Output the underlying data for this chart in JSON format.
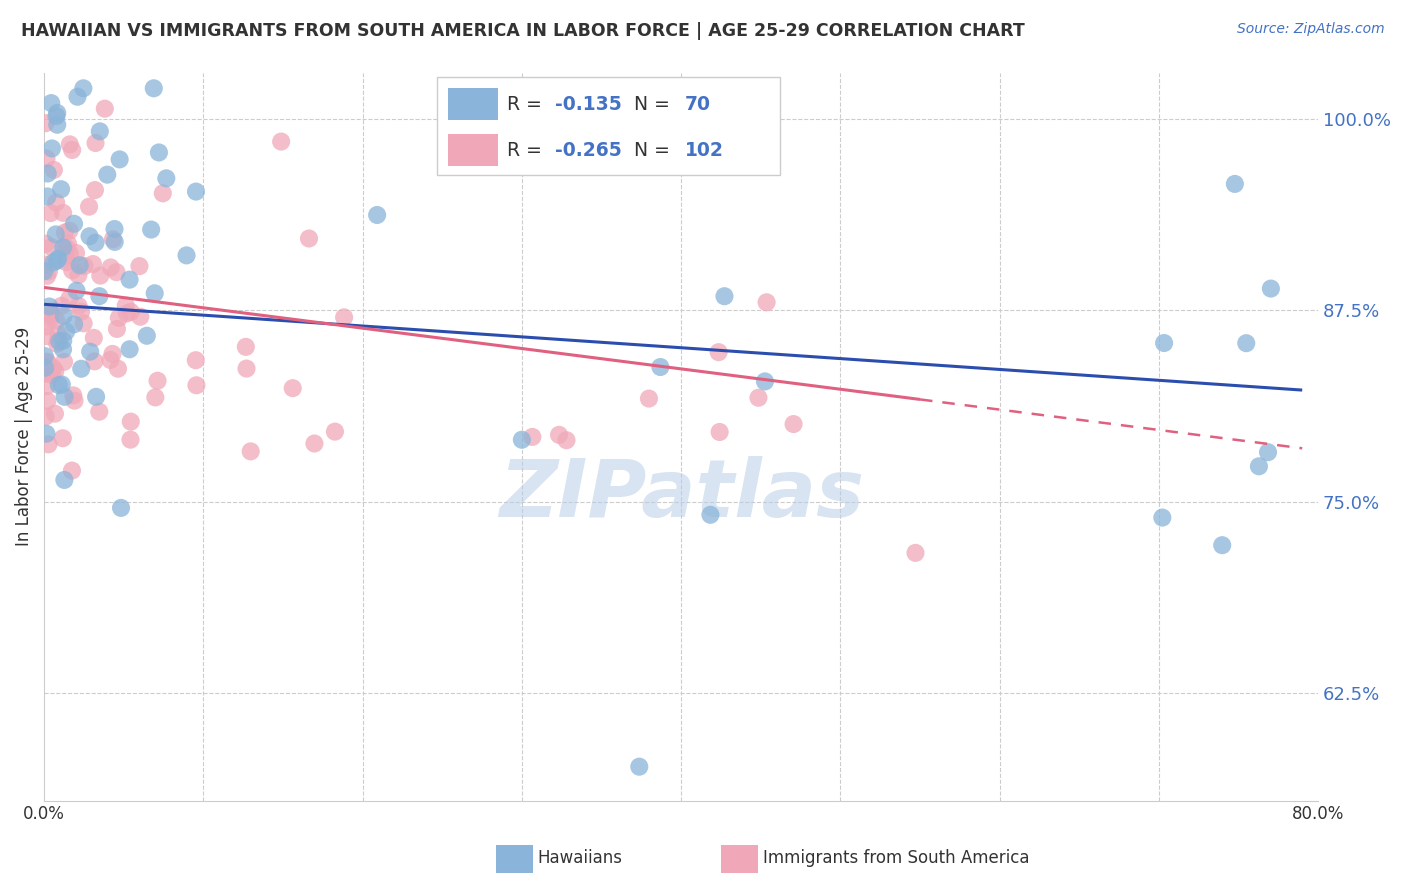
{
  "title": "HAWAIIAN VS IMMIGRANTS FROM SOUTH AMERICA IN LABOR FORCE | AGE 25-29 CORRELATION CHART",
  "source": "Source: ZipAtlas.com",
  "ylabel": "In Labor Force | Age 25-29",
  "xlim": [
    0.0,
    0.8
  ],
  "ylim": [
    0.555,
    1.03
  ],
  "ytick_vals": [
    0.625,
    0.75,
    0.875,
    1.0
  ],
  "ytick_labels": [
    "62.5%",
    "75.0%",
    "87.5%",
    "100.0%"
  ],
  "xtick_vals": [
    0.0,
    0.8
  ],
  "xtick_labels": [
    "0.0%",
    "80.0%"
  ],
  "blue_R": -0.135,
  "blue_N": 70,
  "pink_R": -0.265,
  "pink_N": 102,
  "blue_color": "#8AB4D9",
  "pink_color": "#F0A8B8",
  "blue_line_color": "#2B4EAE",
  "pink_line_color": "#E06080",
  "background_color": "#FFFFFF",
  "watermark": "ZIPatlas",
  "grid_color": "#CCCCCC",
  "tick_color": "#4472C4",
  "text_color": "#333333",
  "source_color": "#4472C4",
  "legend_edge_color": "#CCCCCC",
  "blue_seed": 42,
  "pink_seed": 99
}
